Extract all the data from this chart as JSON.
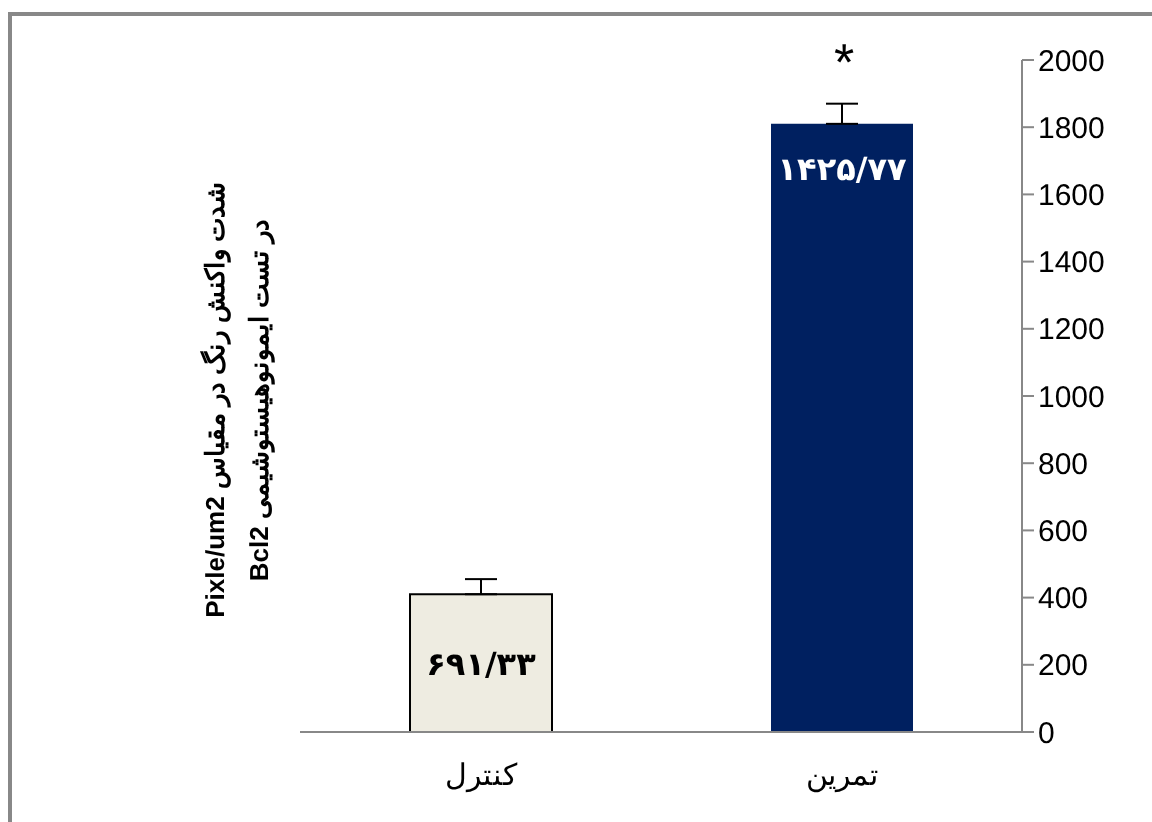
{
  "chart_data": {
    "type": "bar",
    "ylabel": "شدت واکنش رنگ در مقیاس Pixle/um2\nدر تست ایمونوهیستوشیمی Bcl2",
    "categories": [
      "کنترل",
      "تمرین"
    ],
    "values": [
      410,
      1810
    ],
    "colors": [
      "#eeece1",
      "#002060"
    ],
    "errors": [
      [
        410,
        455
      ],
      [
        1810,
        1870
      ]
    ],
    "value_labels": [
      "۶۹۱/۳۳",
      "۱۴۲۵/۷۷"
    ],
    "ylim": [
      0,
      2000
    ],
    "yticks": [
      0,
      200,
      400,
      600,
      800,
      1000,
      1200,
      1400,
      1600,
      1800,
      2000
    ],
    "grid": false,
    "legend": false,
    "annotations": [
      "*"
    ]
  }
}
